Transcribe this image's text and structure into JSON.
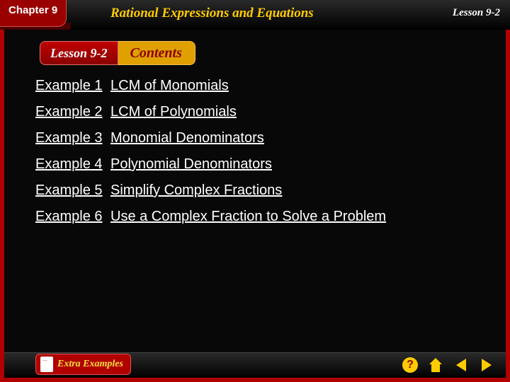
{
  "header": {
    "chapter_label": "Chapter 9",
    "chapter_title": "Rational Expressions and Equations",
    "lesson_label": "Lesson 9-2"
  },
  "banner": {
    "lesson_text": "Lesson 9-2",
    "contents_text": "Contents"
  },
  "examples": [
    {
      "num": "Example 1",
      "title": "LCM of Monomials"
    },
    {
      "num": "Example 2",
      "title": "LCM of Polynomials"
    },
    {
      "num": "Example 3",
      "title": "Monomial Denominators"
    },
    {
      "num": "Example 4",
      "title": "Polynomial Denominators"
    },
    {
      "num": "Example 5",
      "title": "Simplify Complex Fractions"
    },
    {
      "num": "Example 6",
      "title": "Use a Complex Fraction to Solve a Problem"
    }
  ],
  "footer": {
    "extra_label": "Extra Examples"
  },
  "colors": {
    "accent_red": "#b00000",
    "accent_gold": "#ffcc00",
    "link_white": "#ffffff"
  }
}
